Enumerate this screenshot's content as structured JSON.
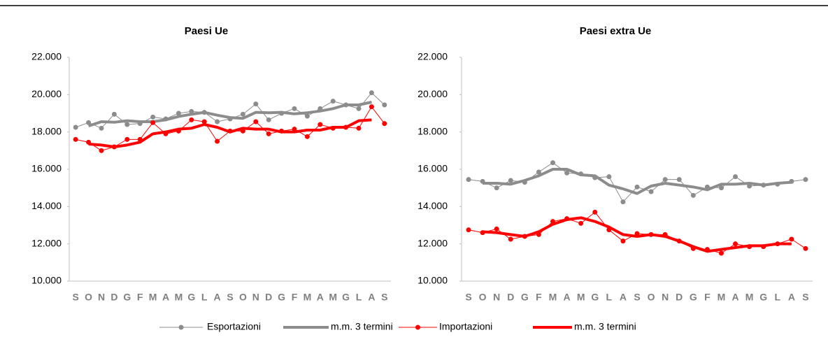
{
  "chart_data": [
    {
      "type": "line",
      "title": "Paesi Ue",
      "categories": [
        "S",
        "O",
        "N",
        "D",
        "G",
        "F",
        "M",
        "A",
        "M",
        "G",
        "L",
        "A",
        "S",
        "O",
        "N",
        "D",
        "G",
        "F",
        "M",
        "A",
        "M",
        "G",
        "L",
        "A",
        "S"
      ],
      "ylim": [
        10000,
        22000
      ],
      "yticks": [
        {
          "value": 10000,
          "label": "10.000"
        },
        {
          "value": 12000,
          "label": "12.000"
        },
        {
          "value": 14000,
          "label": "14.000"
        },
        {
          "value": 16000,
          "label": "16.000"
        },
        {
          "value": 18000,
          "label": "18.000"
        },
        {
          "value": 20000,
          "label": "20.000"
        },
        {
          "value": 22000,
          "label": "22.000"
        }
      ],
      "series": [
        {
          "name": "Esportazioni",
          "color": "#8c8c8c",
          "values": [
            18250,
            18500,
            18200,
            18950,
            18400,
            18450,
            18800,
            18700,
            19000,
            19100,
            19050,
            18550,
            18700,
            18950,
            19500,
            18650,
            19000,
            19250,
            18850,
            19250,
            19650,
            19450,
            19250,
            20100,
            19450
          ]
        },
        {
          "name": "m.m. 3 termini",
          "color": "#8c8c8c",
          "values": [
            null,
            18320,
            18550,
            18520,
            18600,
            18550,
            18550,
            18650,
            18830,
            18950,
            19050,
            18900,
            18770,
            18730,
            19050,
            19030,
            19050,
            18970,
            19030,
            19120,
            19250,
            19450,
            19450,
            19600,
            null
          ]
        },
        {
          "name": "Importazioni",
          "color": "#ff0000",
          "values": [
            17600,
            17450,
            17000,
            17200,
            17600,
            17600,
            18500,
            17900,
            18050,
            18650,
            18550,
            17500,
            18050,
            18050,
            18550,
            17900,
            18050,
            18150,
            17750,
            18400,
            18200,
            18250,
            18200,
            19350,
            18450
          ]
        },
        {
          "name": "m.m. 3 termini",
          "color": "#ff0000",
          "values": [
            null,
            17350,
            17300,
            17200,
            17300,
            17450,
            17900,
            18000,
            18150,
            18200,
            18400,
            18250,
            18000,
            18200,
            18150,
            18150,
            18000,
            18000,
            18100,
            18100,
            18250,
            18250,
            18600,
            18650,
            null
          ]
        }
      ]
    },
    {
      "type": "line",
      "title": "Paesi extra Ue",
      "categories": [
        "S",
        "O",
        "N",
        "D",
        "G",
        "F",
        "M",
        "A",
        "M",
        "G",
        "L",
        "A",
        "S",
        "O",
        "N",
        "D",
        "G",
        "F",
        "M",
        "A",
        "M",
        "G",
        "L",
        "A",
        "S"
      ],
      "ylim": [
        10000,
        22000
      ],
      "yticks": [
        {
          "value": 10000,
          "label": "10.000"
        },
        {
          "value": 12000,
          "label": "12.000"
        },
        {
          "value": 14000,
          "label": "14.000"
        },
        {
          "value": 16000,
          "label": "16.000"
        },
        {
          "value": 18000,
          "label": "18.000"
        },
        {
          "value": 20000,
          "label": "20.000"
        },
        {
          "value": 22000,
          "label": "22.000"
        }
      ],
      "series": [
        {
          "color": "#8c8c8c",
          "values": [
            15450,
            15350,
            15000,
            15400,
            15300,
            15850,
            16350,
            15800,
            15750,
            15550,
            15600,
            14250,
            15050,
            14800,
            15450,
            15450,
            14600,
            15050,
            15000,
            15600,
            15100,
            15150,
            15200,
            15350,
            15450
          ]
        },
        {
          "color": "#8c8c8c",
          "values": [
            null,
            15250,
            15250,
            15200,
            15400,
            15650,
            16000,
            16000,
            15700,
            15650,
            15150,
            14950,
            14700,
            15100,
            15250,
            15150,
            15050,
            14900,
            15200,
            15200,
            15250,
            15150,
            15250,
            15300,
            null
          ]
        },
        {
          "color": "#ff0000",
          "values": [
            12750,
            12600,
            12800,
            12250,
            12400,
            12500,
            13200,
            13350,
            13100,
            13700,
            12750,
            12150,
            12550,
            12500,
            12500,
            12150,
            11750,
            11700,
            11500,
            12000,
            11850,
            11850,
            12000,
            12250,
            11750
          ]
        },
        {
          "color": "#ff0000",
          "values": [
            null,
            12650,
            12600,
            12500,
            12400,
            12650,
            13050,
            13300,
            13400,
            13200,
            12900,
            12500,
            12400,
            12500,
            12400,
            12150,
            11850,
            11600,
            11700,
            11800,
            11900,
            11900,
            12000,
            12000,
            null
          ]
        }
      ]
    }
  ]
}
